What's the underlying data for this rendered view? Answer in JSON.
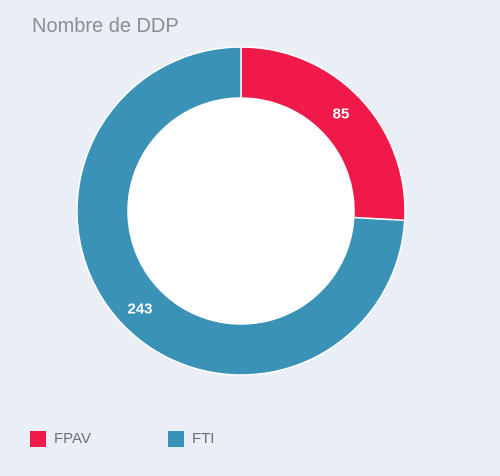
{
  "chart_data": {
    "type": "pie",
    "title": "Nombre de DDP",
    "hole": true,
    "slices": [
      {
        "name": "FPAV",
        "value": 85,
        "color": "#ef1a4a"
      },
      {
        "name": "FTI",
        "value": 243,
        "color": "#3a93b6"
      }
    ],
    "legend_position": "bottom-left"
  },
  "colors": {
    "background": "#e9eff5",
    "hole": "#ffffff",
    "separator": "#ffffff"
  }
}
